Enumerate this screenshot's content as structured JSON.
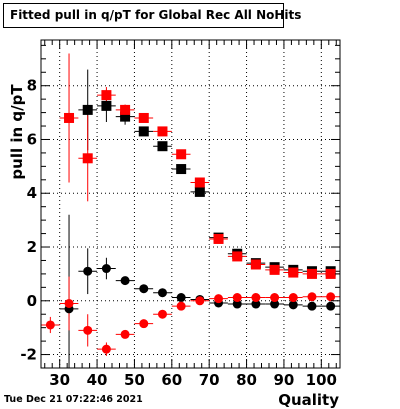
{
  "title": "Fitted pull in q/pT for Global Rec All NoHits",
  "timestamp": "Tue Dec 21 07:22:46 2021",
  "chart_data": {
    "type": "scatter",
    "title": "Fitted pull in q/pT for Global Rec All NoHits",
    "xlabel": "Quality",
    "ylabel": "pull in q/pT",
    "xlim": [
      25,
      105
    ],
    "ylim": [
      -2.5,
      9.7
    ],
    "x_ticks": [
      30,
      40,
      50,
      60,
      70,
      80,
      90,
      100
    ],
    "y_ticks": [
      -2,
      0,
      2,
      4,
      6,
      8
    ],
    "grid": true,
    "legend": "none",
    "series": [
      {
        "marker": "square",
        "color": "#000000",
        "x": [
          32.5,
          37.5,
          42.5,
          47.5,
          52.5,
          57.5,
          62.5,
          67.5,
          72.5,
          77.5,
          82.5,
          87.5,
          92.5,
          97.5,
          102.5
        ],
        "y": [
          null,
          7.1,
          7.25,
          6.85,
          6.3,
          5.75,
          4.9,
          4.05,
          2.35,
          1.75,
          1.4,
          1.25,
          1.15,
          1.1,
          1.1
        ],
        "yerr": [
          null,
          1.5,
          0.6,
          0.3,
          0.15,
          0.12,
          0.1,
          0.1,
          0.08,
          0.06,
          0.06,
          0.05,
          0.05,
          0.05,
          0.05
        ]
      },
      {
        "marker": "square",
        "color": "#ff0000",
        "x": [
          32.5,
          37.5,
          42.5,
          47.5,
          52.5,
          57.5,
          62.5,
          67.5,
          72.5,
          77.5,
          82.5,
          87.5,
          92.5,
          97.5,
          102.5
        ],
        "y": [
          6.8,
          5.3,
          7.65,
          7.1,
          6.8,
          6.3,
          5.45,
          4.4,
          2.3,
          1.65,
          1.35,
          1.15,
          1.05,
          1.0,
          1.0
        ],
        "yerr": [
          2.4,
          1.6,
          0.3,
          0.2,
          0.12,
          0.1,
          0.08,
          0.08,
          0.06,
          0.06,
          0.05,
          0.05,
          0.05,
          0.05,
          0.05
        ]
      },
      {
        "marker": "circle",
        "color": "#000000",
        "x": [
          32.5,
          37.5,
          42.5,
          47.5,
          52.5,
          57.5,
          62.5,
          67.5,
          72.5,
          77.5,
          82.5,
          87.5,
          92.5,
          97.5,
          102.5
        ],
        "y": [
          -0.3,
          1.1,
          1.2,
          0.75,
          0.45,
          0.3,
          0.12,
          0.05,
          -0.08,
          -0.12,
          -0.12,
          -0.12,
          -0.15,
          -0.2,
          -0.2
        ],
        "yerr": [
          3.5,
          0.85,
          0.4,
          0.15,
          0.1,
          0.08,
          0.06,
          0.05,
          0.05,
          0.05,
          0.05,
          0.05,
          0.05,
          0.05,
          0.05
        ]
      },
      {
        "marker": "circle",
        "color": "#ff0000",
        "x": [
          27.5,
          32.5,
          37.5,
          42.5,
          47.5,
          52.5,
          57.5,
          62.5,
          67.5,
          72.5,
          77.5,
          82.5,
          87.5,
          92.5,
          97.5,
          102.5
        ],
        "y": [
          -0.9,
          -0.1,
          -1.1,
          -1.8,
          -1.25,
          -0.85,
          -0.5,
          -0.2,
          0.0,
          0.08,
          0.12,
          0.12,
          0.12,
          0.12,
          0.15,
          0.15
        ],
        "yerr": [
          0.3,
          1.0,
          0.6,
          0.25,
          0.12,
          0.1,
          0.08,
          0.06,
          0.05,
          0.05,
          0.05,
          0.05,
          0.05,
          0.05,
          0.05,
          0.05
        ]
      }
    ]
  }
}
